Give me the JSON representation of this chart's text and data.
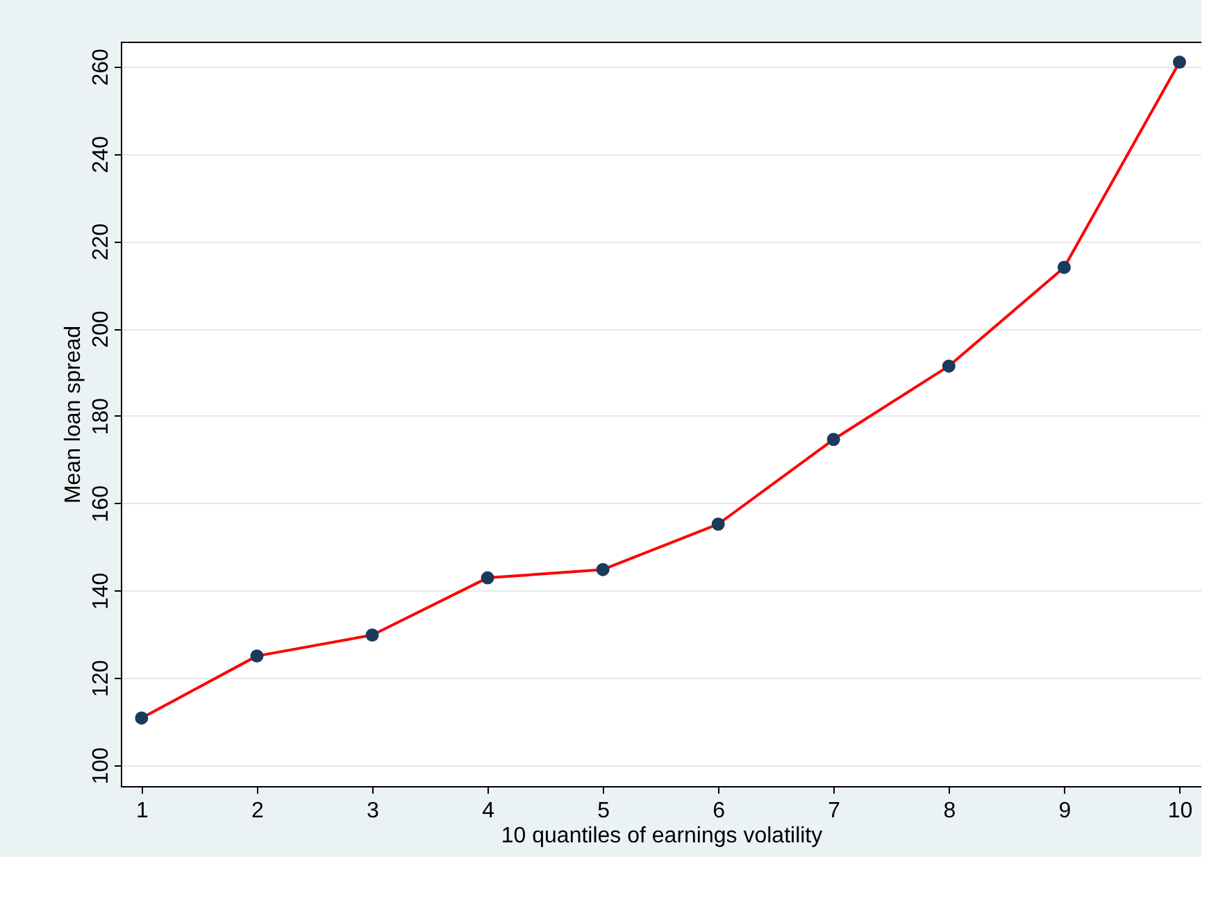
{
  "chart_data": {
    "type": "line",
    "xlabel": "10 quantiles of earnings volatility",
    "ylabel": "Mean loan spread",
    "x": [
      1,
      2,
      3,
      4,
      5,
      6,
      7,
      8,
      9,
      10
    ],
    "series": [
      {
        "color": "#ff0000",
        "values": [
          110.8,
          125,
          129.8,
          142.9,
          144.8,
          155.2,
          174.6,
          191.4,
          214,
          261
        ]
      }
    ],
    "xlim": [
      0.82,
      10.19
    ],
    "xticks": [
      1,
      2,
      3,
      4,
      5,
      6,
      7,
      8,
      9,
      10
    ],
    "ylim": [
      95.2,
      265.7
    ],
    "yticks": [
      100,
      120,
      140,
      160,
      180,
      200,
      220,
      240,
      260
    ],
    "grid": "y",
    "marker": "circle",
    "line_style": "solid"
  }
}
